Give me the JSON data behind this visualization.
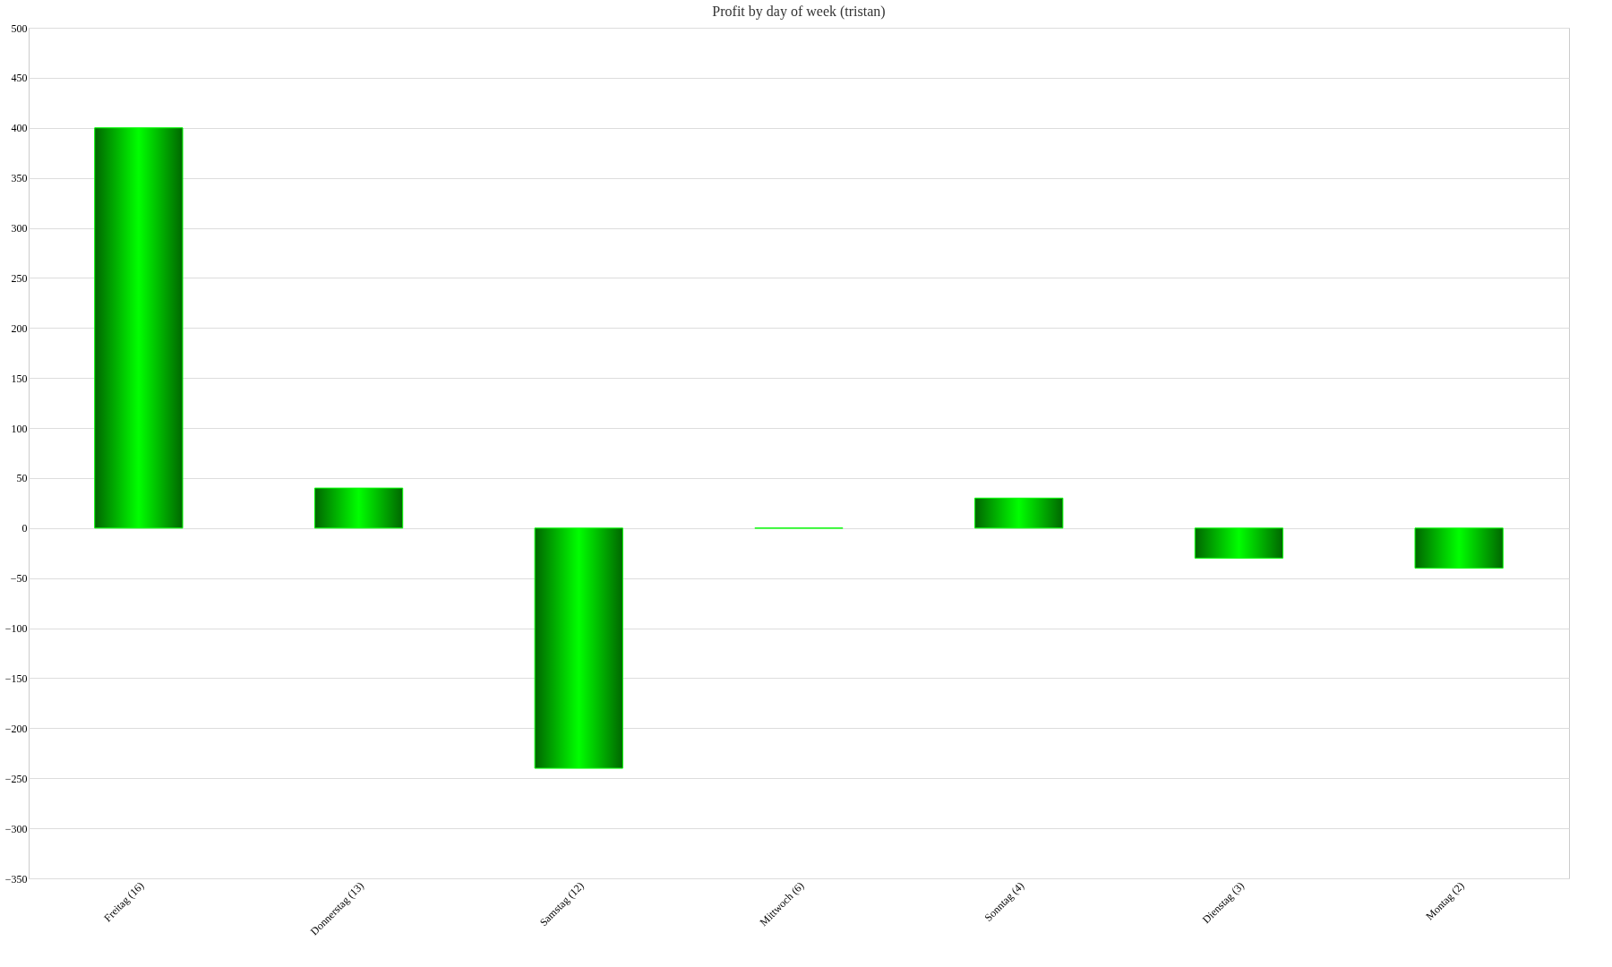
{
  "chart_data": {
    "type": "bar",
    "title": "Profit by day of week  (tristan)",
    "categories": [
      "Freitag (16)",
      "Donnerstag (13)",
      "Samstag (12)",
      "Mittwoch (6)",
      "Sonntag (4)",
      "Dienstag (3)",
      "Montag (2)"
    ],
    "values": [
      400,
      40,
      -240,
      0,
      30,
      -30,
      -40
    ],
    "color": "#00ff00",
    "ylim": [
      -350,
      500
    ],
    "yticks": [
      -350,
      -300,
      -250,
      -200,
      -150,
      -100,
      -50,
      0,
      50,
      100,
      150,
      200,
      250,
      300,
      350,
      400,
      450,
      500
    ],
    "grid": "y"
  }
}
